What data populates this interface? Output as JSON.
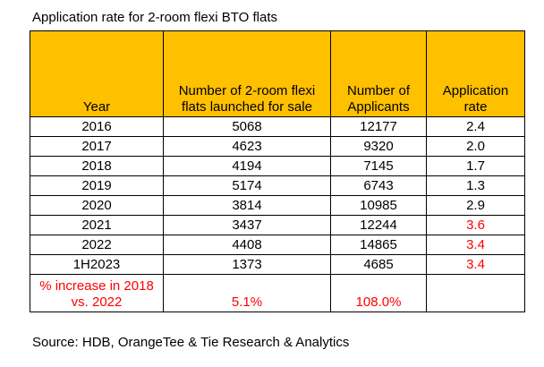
{
  "title": "Application rate for 2-room flexi BTO flats",
  "accent_color": "#FFC000",
  "highlight_color": "#FF0000",
  "headers": {
    "year": "Year",
    "flats_line1": "Number of 2-room flexi",
    "flats_line2": "flats launched for sale",
    "applicants_line1": "Number of",
    "applicants_line2": "Applicants",
    "rate_line1": "Application",
    "rate_line2": "rate"
  },
  "rows": [
    {
      "year": "2016",
      "flats": "5068",
      "applicants": "12177",
      "rate": "2.4"
    },
    {
      "year": "2017",
      "flats": "4623",
      "applicants": "9320",
      "rate": "2.0"
    },
    {
      "year": "2018",
      "flats": "4194",
      "applicants": "7145",
      "rate": "1.7"
    },
    {
      "year": "2019",
      "flats": "5174",
      "applicants": "6743",
      "rate": "1.3"
    },
    {
      "year": "2020",
      "flats": "3814",
      "applicants": "10985",
      "rate": "2.9"
    },
    {
      "year": "2021",
      "flats": "3437",
      "applicants": "12244",
      "rate": "3.6"
    },
    {
      "year": "2022",
      "flats": "4408",
      "applicants": "14865",
      "rate": "3.4"
    },
    {
      "year": "1H2023",
      "flats": "1373",
      "applicants": "4685",
      "rate": "3.4"
    }
  ],
  "total": {
    "label_line1": "% increase in 2018",
    "label_line2": "vs. 2022",
    "flats": "5.1%",
    "applicants": "108.0%",
    "rate": ""
  },
  "source": "Source: HDB, OrangeTee & Tie Research & Analytics"
}
